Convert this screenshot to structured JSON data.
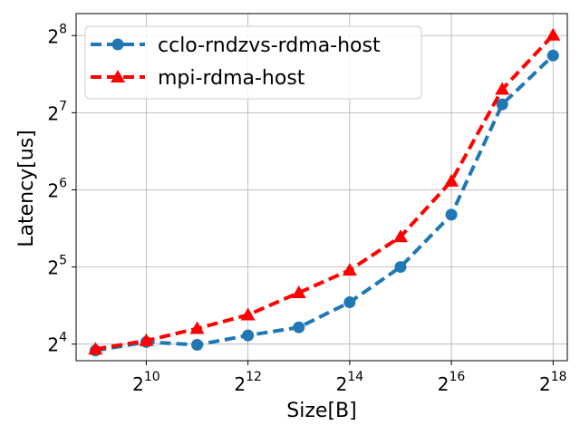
{
  "chart_data": {
    "type": "line",
    "xlabel": "Size[B]",
    "ylabel": "Latency[us]",
    "x_scale": "log2",
    "y_scale": "log2",
    "grid": true,
    "legend_position": "upper-left",
    "x": [
      512,
      1024,
      2048,
      4096,
      8192,
      16384,
      32768,
      65536,
      131072,
      262144
    ],
    "x_ticks": [
      {
        "value": 1024,
        "base": "2",
        "exp": "10"
      },
      {
        "value": 4096,
        "base": "2",
        "exp": "12"
      },
      {
        "value": 16384,
        "base": "2",
        "exp": "14"
      },
      {
        "value": 65536,
        "base": "2",
        "exp": "16"
      },
      {
        "value": 262144,
        "base": "2",
        "exp": "18"
      }
    ],
    "y_ticks": [
      {
        "value": 16,
        "base": "2",
        "exp": "4"
      },
      {
        "value": 32,
        "base": "2",
        "exp": "5"
      },
      {
        "value": 64,
        "base": "2",
        "exp": "6"
      },
      {
        "value": 128,
        "base": "2",
        "exp": "7"
      },
      {
        "value": 256,
        "base": "2",
        "exp": "8"
      }
    ],
    "series": [
      {
        "name": "cclo-rndzvs-rdma-host",
        "color": "#1f77b4",
        "marker": "circle",
        "values": [
          15.1,
          16.3,
          15.9,
          17.3,
          18.6,
          23.3,
          32.0,
          51.2,
          138.0,
          214.0
        ]
      },
      {
        "name": "mpi-rdma-host",
        "color": "#ff0000",
        "marker": "triangle",
        "values": [
          15.3,
          16.5,
          18.4,
          20.8,
          25.4,
          31.1,
          42.0,
          69.2,
          158.0,
          257.0
        ]
      }
    ]
  }
}
